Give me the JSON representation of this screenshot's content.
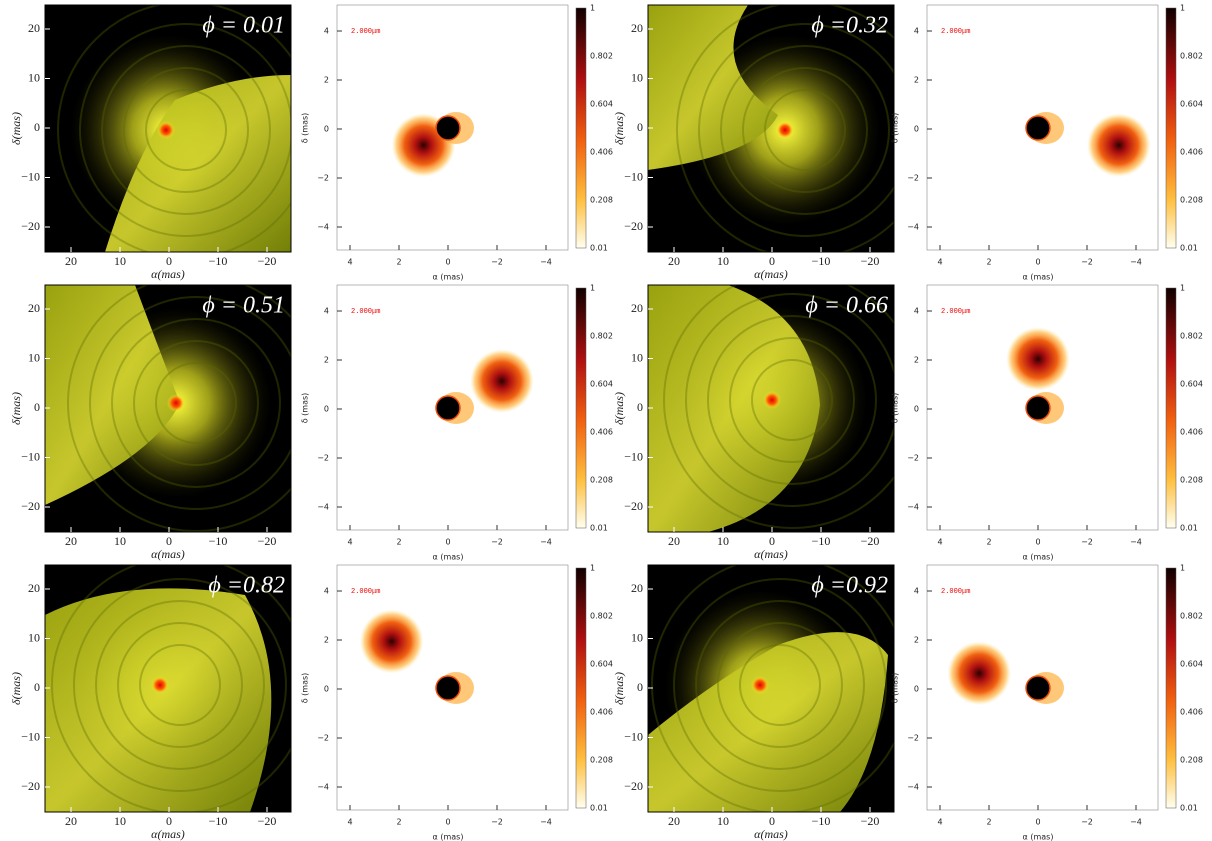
{
  "sim_axes": {
    "xticks": [
      "20",
      "10",
      "0",
      "−10",
      "−20"
    ],
    "yticks": [
      "20",
      "10",
      "0",
      "−10",
      "−20"
    ],
    "xlabel": "α(mas)",
    "ylabel": "δ(mas)"
  },
  "model_axes": {
    "xticks": [
      "4",
      "2",
      "0",
      "−2",
      "−4"
    ],
    "yticks": [
      "4",
      "2",
      "0",
      "−2",
      "−4"
    ],
    "xlabel": "α (mas)",
    "ylabel": "δ (mas)",
    "colorbar_ticks": [
      "1",
      "0.802",
      "0.604",
      "0.406",
      "0.208",
      "0.01"
    ]
  },
  "panels": [
    {
      "phase_label": "ϕ = 0.01",
      "wavelength": "2.000μm"
    },
    {
      "phase_label": "ϕ =0.32",
      "wavelength": "2.000μm"
    },
    {
      "phase_label": "ϕ = 0.51",
      "wavelength": "2.000μm"
    },
    {
      "phase_label": "ϕ = 0.66",
      "wavelength": "2.000μm"
    },
    {
      "phase_label": "ϕ =0.82",
      "wavelength": "2.000μm"
    },
    {
      "phase_label": "ϕ =0.92",
      "wavelength": "2.000μm"
    }
  ]
}
